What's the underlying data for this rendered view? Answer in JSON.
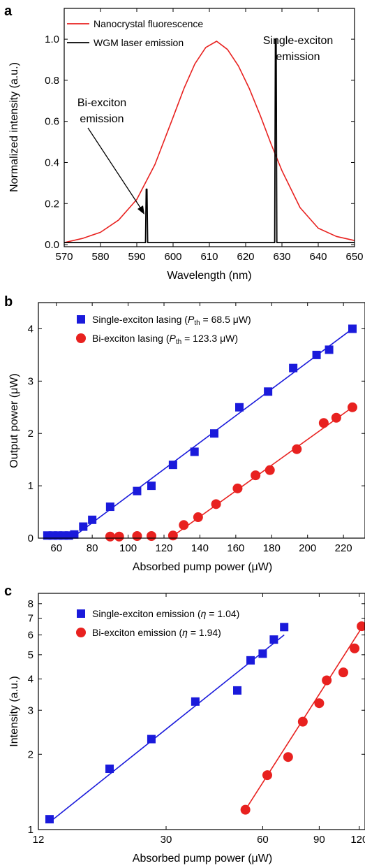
{
  "chart_data": [
    {
      "panel": "a",
      "type": "line",
      "xlabel": "Wavelength (nm)",
      "ylabel": "Normalized intensity (a.u.)",
      "xlim": [
        570,
        650
      ],
      "ylim": [
        -0.01,
        1.15
      ],
      "xticks": [
        570,
        580,
        590,
        600,
        610,
        620,
        630,
        640,
        650
      ],
      "yticks": [
        0.0,
        0.2,
        0.4,
        0.6,
        0.8,
        1.0
      ],
      "ytick_labels": [
        "0.0",
        "0.2",
        "0.4",
        "0.6",
        "0.8",
        "1.0"
      ],
      "legend_position": "top-left",
      "series": [
        {
          "name": "Nanocrystal fluorescence",
          "color": "#e8211f",
          "x": [
            570,
            575,
            580,
            585,
            590,
            595,
            600,
            603,
            606,
            609,
            612,
            615,
            618,
            621,
            624,
            627,
            630,
            635,
            640,
            645,
            650
          ],
          "y": [
            0.01,
            0.03,
            0.06,
            0.12,
            0.22,
            0.39,
            0.62,
            0.76,
            0.88,
            0.96,
            0.99,
            0.95,
            0.87,
            0.76,
            0.63,
            0.49,
            0.36,
            0.18,
            0.08,
            0.04,
            0.02
          ]
        },
        {
          "name": "WGM laser emission",
          "color": "#000000",
          "x": [
            570,
            592.4,
            592.6,
            592.8,
            593.0,
            628.0,
            628.2,
            628.4,
            628.6,
            650
          ],
          "y": [
            0.01,
            0.01,
            0.27,
            0.27,
            0.01,
            0.01,
            1.0,
            1.0,
            0.01,
            0.01
          ]
        }
      ],
      "annotations": [
        {
          "lines": [
            "Bi-exciton",
            "emission"
          ]
        },
        {
          "lines": [
            "Single-exciton",
            "emission"
          ]
        }
      ]
    },
    {
      "panel": "b",
      "type": "scatter",
      "xlabel": "Absorbed pump power (μW)",
      "ylabel": "Output power (μW)",
      "xlim": [
        50,
        232
      ],
      "ylim": [
        0,
        4.5
      ],
      "xticks": [
        60,
        80,
        100,
        120,
        140,
        160,
        180,
        200,
        220
      ],
      "yticks": [
        0,
        1,
        2,
        3,
        4
      ],
      "legend_position": "top-left",
      "series": [
        {
          "name": "Single-exciton lasing",
          "threshold": "68.5 μW",
          "marker": "square",
          "color": "#1a1adb",
          "x": [
            55,
            58,
            61,
            64,
            67,
            70,
            75,
            80,
            90,
            105,
            113,
            125,
            137,
            148,
            162,
            178,
            192,
            205,
            212,
            225
          ],
          "y": [
            0.05,
            0.05,
            0.05,
            0.05,
            0.05,
            0.07,
            0.22,
            0.35,
            0.6,
            0.9,
            1.0,
            1.4,
            1.65,
            2.0,
            2.5,
            2.8,
            3.25,
            3.5,
            3.6,
            4.0
          ],
          "fit": {
            "x": [
              68.5,
              225
            ],
            "y": [
              0,
              4.0
            ]
          }
        },
        {
          "name": "Bi-exciton lasing",
          "threshold": "123.3 μW",
          "marker": "circle",
          "color": "#e8211f",
          "x": [
            90,
            95,
            105,
            113,
            125,
            131,
            139,
            149,
            161,
            171,
            179,
            194,
            209,
            216,
            225
          ],
          "y": [
            0.03,
            0.03,
            0.04,
            0.04,
            0.05,
            0.25,
            0.4,
            0.65,
            0.95,
            1.2,
            1.3,
            1.7,
            2.2,
            2.3,
            2.5
          ],
          "fit": {
            "x": [
              123.3,
              225
            ],
            "y": [
              0,
              2.5
            ]
          }
        }
      ]
    },
    {
      "panel": "c",
      "type": "scatter",
      "xlabel": "Absorbed pump power (μW)",
      "ylabel": "Intensity (a.u.)",
      "xscale": "log",
      "yscale": "log",
      "xlim": [
        12,
        125
      ],
      "ylim": [
        1,
        8.8
      ],
      "xticks": [
        12,
        30,
        60,
        90,
        120
      ],
      "yticks": [
        1,
        2,
        3,
        4,
        5,
        6,
        7,
        8
      ],
      "legend_position": "top-left",
      "series": [
        {
          "name": "Single-exciton emission",
          "eta": "1.04",
          "marker": "square",
          "color": "#1a1adb",
          "x": [
            13,
            20,
            27,
            37,
            50,
            55,
            60,
            65,
            70
          ],
          "y": [
            1.1,
            1.75,
            2.3,
            3.25,
            3.6,
            4.75,
            5.05,
            5.75,
            6.45
          ],
          "fit": {
            "x": [
              13,
              70
            ],
            "y": [
              1.07,
              6.0
            ]
          }
        },
        {
          "name": "Bi-exciton emission",
          "eta": "1.94",
          "marker": "circle",
          "color": "#e8211f",
          "x": [
            53,
            62,
            72,
            80,
            90,
            95,
            107,
            116,
            122
          ],
          "y": [
            1.2,
            1.65,
            1.95,
            2.7,
            3.2,
            3.95,
            4.25,
            5.3,
            6.5
          ],
          "fit": {
            "x": [
              53,
              122
            ],
            "y": [
              1.2,
              6.4
            ]
          }
        }
      ]
    }
  ],
  "panel_labels": [
    "a",
    "b",
    "c"
  ]
}
